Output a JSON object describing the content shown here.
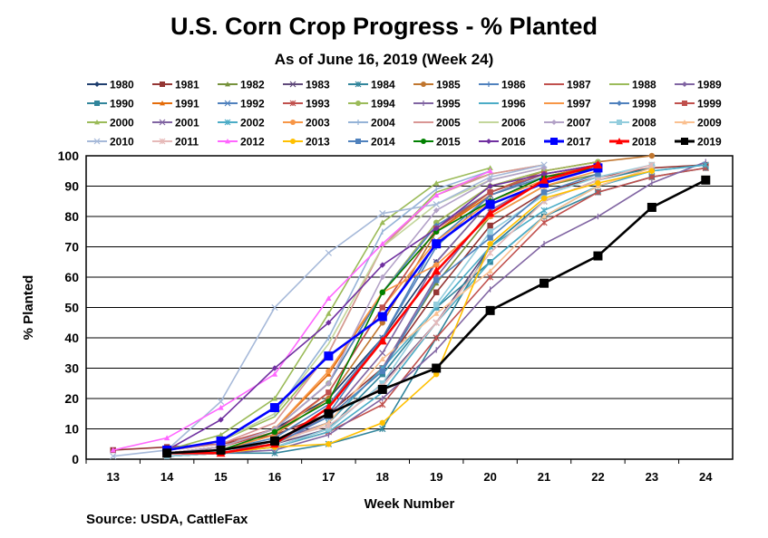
{
  "chart_data": {
    "type": "line",
    "title": "U.S. Corn Crop Progress - % Planted",
    "subtitle": "As of June 16, 2019 (Week 24)",
    "xlabel": "Week Number",
    "ylabel": "% Planted",
    "source": "Source:  USDA, CattleFax",
    "x": [
      13,
      14,
      15,
      16,
      17,
      18,
      19,
      20,
      21,
      22,
      23,
      24
    ],
    "ylim": [
      0,
      100
    ],
    "yticks": [
      0,
      10,
      20,
      30,
      40,
      50,
      60,
      70,
      80,
      90,
      100
    ],
    "grid": true,
    "legend": "top",
    "series": [
      {
        "name": "1980",
        "color": "#1f3e6e",
        "marker": "diamond",
        "values": [
          null,
          2,
          4,
          10,
          20,
          40,
          65,
          85,
          93,
          96,
          null,
          null
        ]
      },
      {
        "name": "1981",
        "color": "#943634",
        "marker": "square",
        "values": [
          3,
          4,
          5,
          8,
          15,
          30,
          55,
          77,
          88,
          93,
          96,
          97
        ]
      },
      {
        "name": "1982",
        "color": "#76923c",
        "marker": "triangle",
        "values": [
          null,
          2,
          3,
          6,
          12,
          30,
          58,
          80,
          90,
          94,
          null,
          null
        ]
      },
      {
        "name": "1983",
        "color": "#5f497a",
        "marker": "x",
        "values": [
          null,
          2,
          3,
          5,
          10,
          25,
          45,
          70,
          85,
          92,
          null,
          null
        ]
      },
      {
        "name": "1984",
        "color": "#31859b",
        "marker": "star",
        "values": [
          null,
          1,
          2,
          2,
          5,
          10,
          40,
          70,
          85,
          92,
          96,
          null
        ]
      },
      {
        "name": "1985",
        "color": "#c0762f",
        "marker": "circle",
        "values": [
          null,
          2,
          3,
          8,
          20,
          45,
          75,
          88,
          95,
          98,
          100,
          null
        ]
      },
      {
        "name": "1986",
        "color": "#4f81bd",
        "marker": "plus",
        "values": [
          null,
          2,
          3,
          7,
          18,
          40,
          70,
          87,
          94,
          97,
          null,
          null
        ]
      },
      {
        "name": "1987",
        "color": "#c0504d",
        "marker": "none",
        "values": [
          null,
          3,
          5,
          10,
          25,
          55,
          78,
          90,
          95,
          98,
          null,
          null
        ]
      },
      {
        "name": "1988",
        "color": "#9bbb59",
        "marker": "none",
        "values": [
          null,
          3,
          6,
          14,
          35,
          70,
          88,
          94,
          97,
          null,
          null,
          null
        ]
      },
      {
        "name": "1989",
        "color": "#8064a2",
        "marker": "diamond",
        "values": [
          null,
          2,
          3,
          6,
          12,
          30,
          60,
          82,
          92,
          96,
          null,
          null
        ]
      },
      {
        "name": "1990",
        "color": "#31859b",
        "marker": "square",
        "values": [
          null,
          1,
          2,
          4,
          10,
          28,
          50,
          65,
          80,
          88,
          93,
          96
        ]
      },
      {
        "name": "1991",
        "color": "#e46c0a",
        "marker": "triangle",
        "values": [
          null,
          2,
          4,
          10,
          28,
          55,
          75,
          87,
          93,
          97,
          null,
          null
        ]
      },
      {
        "name": "1992",
        "color": "#4f81bd",
        "marker": "x",
        "values": [
          null,
          2,
          3,
          6,
          15,
          40,
          72,
          87,
          93,
          96,
          null,
          null
        ]
      },
      {
        "name": "1993",
        "color": "#c0504d",
        "marker": "star",
        "values": [
          null,
          1,
          2,
          4,
          9,
          18,
          40,
          60,
          78,
          88,
          93,
          96
        ]
      },
      {
        "name": "1994",
        "color": "#9bbb59",
        "marker": "circle",
        "values": [
          null,
          2,
          4,
          10,
          25,
          55,
          78,
          90,
          95,
          98,
          null,
          null
        ]
      },
      {
        "name": "1995",
        "color": "#8064a2",
        "marker": "plus",
        "values": [
          null,
          1,
          2,
          3,
          8,
          20,
          36,
          56,
          71,
          80,
          91,
          98
        ]
      },
      {
        "name": "1996",
        "color": "#4bacc6",
        "marker": "none",
        "values": [
          null,
          1,
          2,
          4,
          9,
          22,
          45,
          65,
          80,
          90,
          95,
          97
        ]
      },
      {
        "name": "1997",
        "color": "#f79646",
        "marker": "none",
        "values": [
          null,
          2,
          3,
          8,
          22,
          50,
          72,
          85,
          92,
          96,
          null,
          null
        ]
      },
      {
        "name": "1998",
        "color": "#4f81bd",
        "marker": "diamond",
        "values": [
          null,
          2,
          4,
          10,
          25,
          55,
          77,
          88,
          94,
          97,
          null,
          null
        ]
      },
      {
        "name": "1999",
        "color": "#c0504d",
        "marker": "square",
        "values": [
          null,
          2,
          4,
          9,
          22,
          50,
          76,
          88,
          94,
          97,
          null,
          null
        ]
      },
      {
        "name": "2000",
        "color": "#9bbb59",
        "marker": "triangle",
        "values": [
          null,
          3,
          8,
          20,
          48,
          78,
          91,
          96,
          null,
          null,
          null,
          null
        ]
      },
      {
        "name": "2001",
        "color": "#8064a2",
        "marker": "x",
        "values": [
          null,
          2,
          3,
          6,
          14,
          35,
          65,
          85,
          93,
          96,
          null,
          null
        ]
      },
      {
        "name": "2002",
        "color": "#4bacc6",
        "marker": "star",
        "values": [
          null,
          2,
          3,
          5,
          12,
          30,
          50,
          70,
          82,
          90,
          95,
          97
        ]
      },
      {
        "name": "2003",
        "color": "#f79646",
        "marker": "circle",
        "values": [
          null,
          2,
          4,
          10,
          29,
          55,
          64,
          80,
          90,
          95,
          null,
          null
        ]
      },
      {
        "name": "2004",
        "color": "#95b3d7",
        "marker": "plus",
        "values": [
          null,
          3,
          6,
          15,
          40,
          75,
          89,
          95,
          null,
          null,
          null,
          null
        ]
      },
      {
        "name": "2005",
        "color": "#d99694",
        "marker": "none",
        "values": [
          null,
          3,
          5,
          12,
          35,
          70,
          87,
          94,
          97,
          null,
          null,
          null
        ]
      },
      {
        "name": "2006",
        "color": "#c3d69b",
        "marker": "none",
        "values": [
          null,
          3,
          6,
          15,
          38,
          70,
          84,
          92,
          96,
          null,
          null,
          null
        ]
      },
      {
        "name": "2007",
        "color": "#b3a2c7",
        "marker": "diamond",
        "values": [
          null,
          2,
          4,
          10,
          25,
          60,
          82,
          92,
          96,
          null,
          null,
          null
        ]
      },
      {
        "name": "2008",
        "color": "#93cddd",
        "marker": "square",
        "values": [
          null,
          1,
          2,
          4,
          10,
          25,
          51,
          75,
          87,
          93,
          97,
          null
        ]
      },
      {
        "name": "2009",
        "color": "#fac090",
        "marker": "triangle",
        "values": [
          null,
          2,
          3,
          5,
          12,
          33,
          48,
          62,
          80,
          90,
          96,
          null
        ]
      },
      {
        "name": "2010",
        "color": "#a6b9d9",
        "marker": "x",
        "values": [
          1,
          3,
          19,
          50,
          68,
          81,
          84,
          93,
          97,
          null,
          null,
          null
        ]
      },
      {
        "name": "2011",
        "color": "#e6b9b8",
        "marker": "star",
        "values": [
          null,
          2,
          3,
          6,
          11,
          24,
          45,
          68,
          85,
          92,
          97,
          null
        ]
      },
      {
        "name": "2012",
        "color": "#ff66ff",
        "marker": "triangle",
        "values": [
          3,
          7,
          17,
          28,
          53,
          71,
          87,
          95,
          null,
          null,
          null,
          null
        ]
      },
      {
        "name": "2013",
        "color": "#ffc000",
        "marker": "circle",
        "values": [
          null,
          2,
          2,
          4,
          5,
          12,
          28,
          71,
          86,
          91,
          95,
          null
        ]
      },
      {
        "name": "2014",
        "color": "#4f81bd",
        "marker": "square",
        "values": [
          null,
          2,
          3,
          5,
          14,
          29,
          59,
          73,
          88,
          94,
          null,
          null
        ]
      },
      {
        "name": "2015",
        "color": "#008000",
        "marker": "circle",
        "values": [
          null,
          2,
          3,
          9,
          19,
          55,
          75,
          85,
          93,
          96,
          null,
          null
        ]
      },
      {
        "name": "2016",
        "color": "#7030a0",
        "marker": "diamond",
        "values": [
          null,
          3,
          13,
          30,
          45,
          64,
          76,
          90,
          94,
          97,
          null,
          null
        ]
      },
      {
        "name": "2017",
        "color": "#0000ff",
        "marker": "square",
        "values": [
          null,
          3,
          6,
          17,
          34,
          47,
          71,
          84,
          91,
          96,
          null,
          null
        ]
      },
      {
        "name": "2018",
        "color": "#ff0000",
        "marker": "triangle",
        "values": [
          null,
          2,
          2,
          5,
          17,
          39,
          62,
          81,
          92,
          97,
          null,
          null
        ]
      },
      {
        "name": "2019",
        "color": "#000000",
        "marker": "square",
        "values": [
          null,
          2,
          3,
          6,
          15,
          23,
          30,
          49,
          58,
          67,
          83,
          92
        ]
      }
    ]
  }
}
